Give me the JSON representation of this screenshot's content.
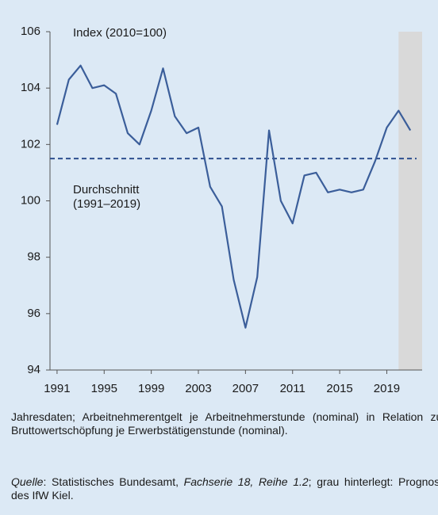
{
  "chart_data": {
    "type": "line",
    "annotation": "Index (2010=100)",
    "x": [
      1991,
      1992,
      1993,
      1994,
      1995,
      1996,
      1997,
      1998,
      1999,
      2000,
      2001,
      2002,
      2003,
      2004,
      2005,
      2006,
      2007,
      2008,
      2009,
      2010,
      2011,
      2012,
      2013,
      2014,
      2015,
      2016,
      2017,
      2018,
      2019,
      2020,
      2021
    ],
    "series": [
      {
        "color": "#3b5e9a",
        "values": [
          102.7,
          104.3,
          104.8,
          104.0,
          104.1,
          103.8,
          102.4,
          102.0,
          103.2,
          104.7,
          103.0,
          102.4,
          102.6,
          100.5,
          99.8,
          97.2,
          95.5,
          97.3,
          102.5,
          100.0,
          99.2,
          100.9,
          101.0,
          100.3,
          100.4,
          100.3,
          100.4,
          101.4,
          102.6,
          103.2,
          102.5
        ]
      }
    ],
    "average": {
      "value": 101.5,
      "color": "#2e4f8f",
      "label": [
        "Durchschnitt",
        "(1991–2019)"
      ]
    },
    "shaded": {
      "from": 2020,
      "to": 2022,
      "color": "#d9d9d9"
    },
    "xlim": [
      1990.4,
      2022
    ],
    "xticks": [
      1991,
      1995,
      1999,
      2003,
      2007,
      2011,
      2015,
      2019
    ],
    "ylim": [
      94,
      106
    ],
    "yticks": [
      94,
      96,
      98,
      100,
      102,
      104,
      106
    ]
  },
  "notes": {
    "description": "Jahresdaten; Arbeitnehmerentgelt je Arbeitnehmerstunde (nominal) in Relation zur Bruttowertschöpfung je Erwerbstätigenstunde (nominal).",
    "source": [
      {
        "text": "Quelle",
        "italic": true
      },
      {
        "text": ": Statistisches Bundesamt, ",
        "italic": false
      },
      {
        "text": "Fachserie 18, Reihe 1.2",
        "italic": true
      },
      {
        "text": "; grau hinterlegt: Prognose des IfW Kiel.",
        "italic": false
      }
    ]
  }
}
